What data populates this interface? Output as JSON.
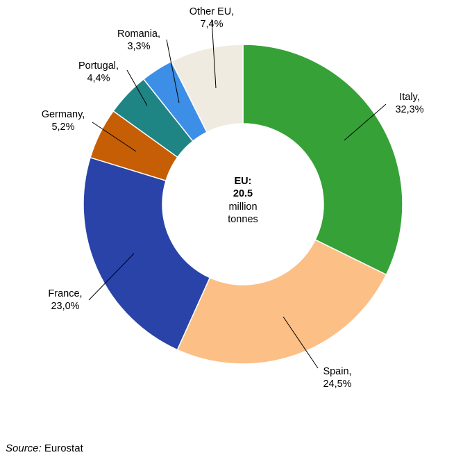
{
  "chart_data": {
    "type": "pie",
    "variant": "donut",
    "center_label": {
      "line1": "EU:",
      "line2": "20.5",
      "line3": "million",
      "line4": "tonnes"
    },
    "slices": [
      {
        "name": "Italy",
        "label": "Italy,",
        "value_text": "32,3%",
        "value": 32.3,
        "color": "#36a136"
      },
      {
        "name": "Spain",
        "label": "Spain,",
        "value_text": "24,5%",
        "value": 24.5,
        "color": "#fcbf85"
      },
      {
        "name": "France",
        "label": "France,",
        "value_text": "23,0%",
        "value": 23.0,
        "color": "#2943a8"
      },
      {
        "name": "Germany",
        "label": "Germany,",
        "value_text": "5,2%",
        "value": 5.2,
        "color": "#c55e05"
      },
      {
        "name": "Portugal",
        "label": "Portugal,",
        "value_text": "4,4%",
        "value": 4.4,
        "color": "#1f8484"
      },
      {
        "name": "Romania",
        "label": "Romania,",
        "value_text": "3,3%",
        "value": 3.3,
        "color": "#3d8ee6"
      },
      {
        "name": "Other EU",
        "label": "Other EU,",
        "value_text": "7,4%",
        "value": 7.4,
        "color": "#efebe1"
      }
    ]
  },
  "source": {
    "label": "Source:",
    "text": " Eurostat"
  }
}
